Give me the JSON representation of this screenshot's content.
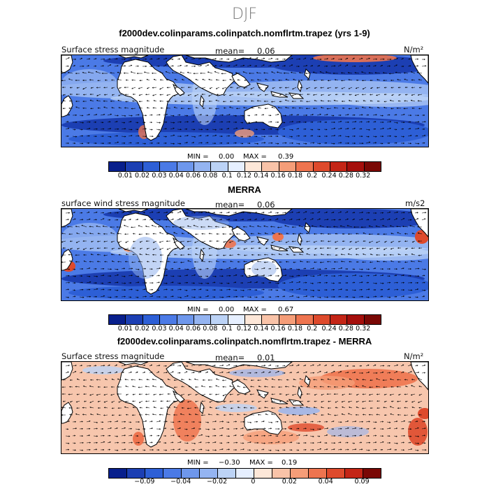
{
  "season": "DJF",
  "colors": {
    "scale": [
      "#081f8c",
      "#1c3fb3",
      "#2d5fd6",
      "#4b7ae6",
      "#6e97ec",
      "#94b4f1",
      "#bcd3f6",
      "#e6efff",
      "#fde7d8",
      "#f9c3a8",
      "#f59d78",
      "#ee744f",
      "#de4a2c",
      "#c42516",
      "#a50f0c",
      "#7a0805"
    ],
    "land": "#ffffff",
    "coast": "#000000"
  },
  "panels": [
    {
      "title": "f2000dev.colinparams.colinpatch.nomflrtm.trapez (yrs 1-9)",
      "left_label": "Surface stress magnitude",
      "mean_label": "mean=",
      "mean_value": "0.06",
      "units": "N/m²",
      "min_label": "MIN =",
      "min_value": "0.00",
      "max_label": "MAX =",
      "max_value": "0.39",
      "ticks": [
        "0.01",
        "0.02",
        "0.03",
        "0.04",
        "0.06",
        "0.08",
        "0.1",
        "0.12",
        "0.14",
        "0.16",
        "0.18",
        "0.2",
        "0.24",
        "0.28",
        "0.32"
      ]
    },
    {
      "title": "MERRA",
      "left_label": "surface wind stress magnitude",
      "mean_label": "mean=",
      "mean_value": "0.06",
      "units": "m/s2",
      "min_label": "MIN =",
      "min_value": "0.00",
      "max_label": "MAX =",
      "max_value": "0.67",
      "ticks": [
        "0.01",
        "0.02",
        "0.03",
        "0.04",
        "0.06",
        "0.08",
        "0.1",
        "0.12",
        "0.14",
        "0.16",
        "0.18",
        "0.2",
        "0.24",
        "0.28",
        "0.32"
      ]
    },
    {
      "title": "f2000dev.colinparams.colinpatch.nomflrtm.trapez - MERRA",
      "left_label": "Surface stress magnitude",
      "mean_label": "mean=",
      "mean_value": "0.01",
      "units": "N/m²",
      "min_label": "MIN =",
      "min_value": "−0.30",
      "max_label": "MAX =",
      "max_value": "0.19",
      "ticks": [
        "−0.09",
        "−0.04",
        "−0.02",
        "0",
        "0.02",
        "0.04",
        "0.09"
      ]
    }
  ]
}
